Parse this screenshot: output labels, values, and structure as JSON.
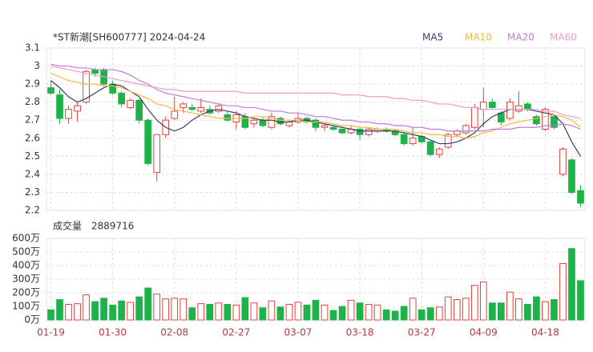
{
  "chart_data": [
    {
      "type": "candlestick",
      "title": "*ST新潮[SH600777] 2024-04-24",
      "categories": [
        "01-19",
        null,
        null,
        null,
        null,
        null,
        null,
        "01-30",
        null,
        null,
        null,
        null,
        null,
        null,
        "02-08",
        null,
        null,
        null,
        null,
        null,
        null,
        "02-27",
        null,
        null,
        null,
        null,
        null,
        null,
        "03-07",
        null,
        null,
        null,
        null,
        null,
        null,
        "03-18",
        null,
        null,
        null,
        null,
        null,
        null,
        "03-27",
        null,
        null,
        null,
        null,
        null,
        null,
        "04-09",
        null,
        null,
        null,
        null,
        null,
        null,
        "04-18",
        null,
        null,
        null,
        null
      ],
      "open": [
        2.88,
        2.84,
        2.71,
        2.75,
        2.8,
        2.98,
        2.98,
        2.9,
        2.85,
        2.77,
        2.81,
        2.7,
        2.41,
        2.62,
        2.71,
        2.77,
        2.77,
        2.75,
        2.76,
        2.75,
        2.73,
        2.69,
        2.72,
        2.68,
        2.7,
        2.66,
        2.71,
        2.67,
        2.69,
        2.71,
        2.7,
        2.66,
        2.66,
        2.65,
        2.63,
        2.65,
        2.62,
        2.64,
        2.65,
        2.64,
        2.62,
        2.57,
        2.61,
        2.58,
        2.51,
        2.55,
        2.62,
        2.63,
        2.66,
        2.76,
        2.8,
        2.74,
        2.71,
        2.75,
        2.79,
        2.72,
        2.65,
        2.72,
        2.4,
        2.48,
        2.31
      ],
      "high": [
        2.92,
        2.87,
        2.78,
        2.8,
        2.98,
        2.99,
        2.99,
        2.92,
        2.86,
        2.82,
        2.82,
        2.71,
        2.62,
        2.72,
        2.83,
        2.8,
        2.79,
        2.82,
        2.78,
        2.79,
        2.75,
        2.75,
        2.74,
        2.71,
        2.72,
        2.74,
        2.72,
        2.7,
        2.74,
        2.72,
        2.71,
        2.68,
        2.67,
        2.66,
        2.67,
        2.66,
        2.66,
        2.66,
        2.66,
        2.65,
        2.63,
        2.66,
        2.62,
        2.59,
        2.55,
        2.63,
        2.65,
        2.68,
        2.79,
        2.88,
        2.82,
        2.75,
        2.82,
        2.86,
        2.8,
        2.73,
        2.77,
        2.73,
        2.55,
        2.49,
        2.34
      ],
      "low": [
        2.84,
        2.68,
        2.68,
        2.69,
        2.79,
        2.94,
        2.89,
        2.84,
        2.77,
        2.76,
        2.68,
        2.45,
        2.36,
        2.6,
        2.7,
        2.74,
        2.75,
        2.74,
        2.73,
        2.74,
        2.69,
        2.65,
        2.65,
        2.66,
        2.66,
        2.65,
        2.67,
        2.66,
        2.68,
        2.68,
        2.64,
        2.64,
        2.64,
        2.62,
        2.62,
        2.59,
        2.61,
        2.63,
        2.63,
        2.61,
        2.56,
        2.56,
        2.57,
        2.5,
        2.49,
        2.54,
        2.61,
        2.62,
        2.65,
        2.66,
        2.76,
        2.67,
        2.7,
        2.74,
        2.75,
        2.67,
        2.64,
        2.65,
        2.39,
        2.29,
        2.22
      ],
      "close": [
        2.85,
        2.71,
        2.76,
        2.78,
        2.97,
        2.96,
        2.9,
        2.85,
        2.79,
        2.81,
        2.7,
        2.46,
        2.62,
        2.7,
        2.75,
        2.79,
        2.76,
        2.77,
        2.74,
        2.78,
        2.7,
        2.73,
        2.66,
        2.7,
        2.67,
        2.72,
        2.68,
        2.69,
        2.71,
        2.69,
        2.66,
        2.67,
        2.65,
        2.63,
        2.65,
        2.62,
        2.65,
        2.65,
        2.64,
        2.62,
        2.57,
        2.6,
        2.58,
        2.51,
        2.54,
        2.62,
        2.64,
        2.67,
        2.77,
        2.8,
        2.77,
        2.69,
        2.8,
        2.78,
        2.76,
        2.68,
        2.76,
        2.66,
        2.54,
        2.3,
        2.24
      ],
      "up_color": "#e8413a",
      "down_color": "#1db34a",
      "series": [
        {
          "name": "MA5",
          "color": "#3b3b6b",
          "values": [
            2.92,
            2.88,
            2.83,
            2.8,
            2.82,
            2.85,
            2.88,
            2.9,
            2.89,
            2.86,
            2.83,
            2.76,
            2.7,
            2.66,
            2.64,
            2.66,
            2.7,
            2.73,
            2.75,
            2.76,
            2.75,
            2.74,
            2.72,
            2.71,
            2.7,
            2.7,
            2.69,
            2.69,
            2.7,
            2.7,
            2.69,
            2.68,
            2.67,
            2.66,
            2.65,
            2.64,
            2.64,
            2.64,
            2.64,
            2.64,
            2.63,
            2.62,
            2.61,
            2.59,
            2.57,
            2.57,
            2.58,
            2.6,
            2.63,
            2.68,
            2.72,
            2.74,
            2.76,
            2.76,
            2.76,
            2.75,
            2.74,
            2.73,
            2.68,
            2.58,
            2.5
          ]
        },
        {
          "name": "MA10",
          "color": "#f5b942",
          "values": [
            2.96,
            2.94,
            2.92,
            2.91,
            2.9,
            2.9,
            2.89,
            2.89,
            2.88,
            2.86,
            2.84,
            2.82,
            2.79,
            2.78,
            2.76,
            2.75,
            2.74,
            2.73,
            2.72,
            2.71,
            2.71,
            2.71,
            2.71,
            2.72,
            2.72,
            2.71,
            2.7,
            2.7,
            2.7,
            2.69,
            2.69,
            2.69,
            2.68,
            2.67,
            2.67,
            2.66,
            2.66,
            2.65,
            2.65,
            2.65,
            2.64,
            2.63,
            2.63,
            2.62,
            2.62,
            2.61,
            2.61,
            2.6,
            2.61,
            2.63,
            2.64,
            2.66,
            2.68,
            2.69,
            2.7,
            2.71,
            2.72,
            2.73,
            2.72,
            2.7,
            2.66
          ]
        },
        {
          "name": "MA20",
          "color": "#c27ad6",
          "values": [
            3.01,
            3.0,
            3.0,
            2.99,
            2.99,
            2.98,
            2.98,
            2.98,
            2.97,
            2.95,
            2.92,
            2.9,
            2.87,
            2.85,
            2.84,
            2.83,
            2.82,
            2.81,
            2.8,
            2.79,
            2.78,
            2.78,
            2.77,
            2.77,
            2.76,
            2.75,
            2.75,
            2.74,
            2.74,
            2.73,
            2.72,
            2.72,
            2.71,
            2.7,
            2.7,
            2.69,
            2.69,
            2.68,
            2.68,
            2.67,
            2.67,
            2.66,
            2.66,
            2.65,
            2.65,
            2.64,
            2.64,
            2.64,
            2.64,
            2.64,
            2.65,
            2.65,
            2.65,
            2.66,
            2.66,
            2.66,
            2.67,
            2.67,
            2.68,
            2.67,
            2.65
          ]
        },
        {
          "name": "MA60",
          "color": "#f09ac8",
          "values": [
            3.0,
            2.99,
            2.98,
            2.97,
            2.96,
            2.95,
            2.94,
            2.93,
            2.92,
            2.91,
            2.9,
            2.89,
            2.88,
            2.87,
            2.87,
            2.86,
            2.86,
            2.86,
            2.86,
            2.86,
            2.86,
            2.86,
            2.85,
            2.85,
            2.85,
            2.85,
            2.85,
            2.85,
            2.85,
            2.85,
            2.85,
            2.85,
            2.85,
            2.84,
            2.84,
            2.84,
            2.83,
            2.83,
            2.83,
            2.82,
            2.82,
            2.81,
            2.81,
            2.8,
            2.79,
            2.79,
            2.78,
            2.77,
            2.77,
            2.76,
            2.76,
            2.76,
            2.76,
            2.76,
            2.76,
            2.76,
            2.75,
            2.75,
            2.73,
            2.72,
            2.71
          ]
        }
      ],
      "ylim": [
        2.2,
        3.1
      ],
      "yticks": [
        3.1,
        3,
        2.9,
        2.8,
        2.7,
        2.6,
        2.5,
        2.4,
        2.3,
        2.2
      ],
      "grid": true
    },
    {
      "type": "bar",
      "title": "成交量",
      "latest": 2889716,
      "values": [
        75,
        150,
        115,
        120,
        185,
        135,
        160,
        110,
        140,
        130,
        170,
        235,
        190,
        155,
        160,
        155,
        90,
        120,
        115,
        125,
        115,
        110,
        165,
        125,
        90,
        140,
        95,
        115,
        130,
        110,
        145,
        110,
        70,
        100,
        145,
        125,
        115,
        110,
        75,
        65,
        100,
        160,
        75,
        90,
        95,
        170,
        150,
        160,
        255,
        280,
        125,
        125,
        205,
        155,
        115,
        170,
        135,
        150,
        415,
        525,
        288.9716
      ],
      "ylim": [
        0,
        600
      ],
      "yticks": [
        {
          "value": 600,
          "label": "600万"
        },
        {
          "value": 500,
          "label": "500万"
        },
        {
          "value": 400,
          "label": "400万"
        },
        {
          "value": 300,
          "label": "300万"
        },
        {
          "value": 200,
          "label": "200万"
        },
        {
          "value": 100,
          "label": "100万"
        },
        {
          "value": 0,
          "label": "0万"
        }
      ],
      "grid": true
    }
  ]
}
